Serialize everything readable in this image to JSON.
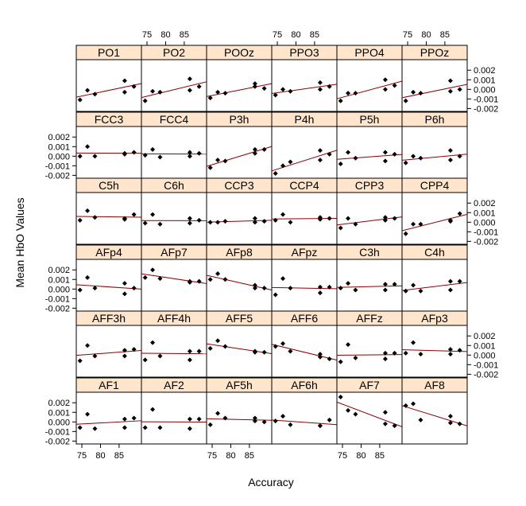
{
  "chart_data": {
    "type": "scatter",
    "xlabel": "Accuracy",
    "ylabel": "Mean HbO Values",
    "xlim": [
      73.5,
      91
    ],
    "ylim": [
      -0.0023,
      0.0031
    ],
    "x_ticks": [
      75,
      80,
      85
    ],
    "x_tick_labels": [
      "75",
      "80",
      "85"
    ],
    "y_ticks": [
      -0.002,
      -0.001,
      0.0,
      0.001,
      0.002
    ],
    "y_tick_labels": [
      "-0.002",
      "-0.001",
      "0.000",
      "0.001",
      "0.002"
    ],
    "x": [
      74.5,
      76.5,
      78.5,
      86.5,
      86.5,
      89.0
    ],
    "rows": [
      [
        "PO1",
        "PO2",
        "POOz",
        "PPO3",
        "PPO4",
        "PPOz"
      ],
      [
        "FCC3",
        "FCC4",
        "P3h",
        "P4h",
        "P5h",
        "P6h"
      ],
      [
        "C5h",
        "C6h",
        "CCP3",
        "CCP4",
        "CPP3",
        "CPP4"
      ],
      [
        "AFp4",
        "AFp7",
        "AFp8",
        "AFpz",
        "C3h",
        "C4h"
      ],
      [
        "AFF3h",
        "AFF4h",
        "AFF5",
        "AFF6",
        "AFFz",
        "AFp3"
      ],
      [
        "AF1",
        "AF2",
        "AF5h",
        "AF6h",
        "AF7",
        "AF8"
      ]
    ],
    "panels": {
      "PO1": [
        -0.0011,
        -0.0001,
        -0.0005,
        0.0009,
        -0.0003,
        0.0003
      ],
      "PO2": [
        -0.0012,
        -0.0002,
        -0.0003,
        0.0011,
        -0.0001,
        0.0003
      ],
      "POOz": [
        -0.0009,
        -0.0003,
        -0.0004,
        0.0006,
        0.0003,
        0.0001
      ],
      "PPO3": [
        -0.0006,
        0.0,
        -0.0002,
        0.0007,
        0.0,
        0.0003
      ],
      "PPO4": [
        -0.0012,
        -0.0004,
        -0.0004,
        0.001,
        0.0,
        0.0004
      ],
      "PPOz": [
        -0.0012,
        -0.0003,
        -0.0004,
        0.0009,
        -0.0002,
        0.0
      ],
      "FCC3": [
        0.0,
        0.001,
        0.0,
        0.0002,
        0.0003,
        0.0004
      ],
      "FCC4": [
        0.0001,
        0.0007,
        -0.0001,
        0.0004,
        0.0,
        0.0003
      ],
      "P3h": [
        -0.0012,
        -0.0004,
        -0.0005,
        0.0007,
        0.0003,
        0.0007
      ],
      "P4h": [
        -0.0018,
        -0.001,
        -0.0006,
        0.0006,
        -0.0004,
        0.0002
      ],
      "P5h": [
        -0.0008,
        0.0004,
        -0.0002,
        0.0004,
        -0.0005,
        0.0002
      ],
      "P6h": [
        -0.0007,
        0.0,
        -0.0002,
        0.0006,
        -0.0004,
        0.0
      ],
      "C5h": [
        0.0002,
        0.0012,
        0.0005,
        0.0004,
        0.0003,
        0.0008
      ],
      "C6h": [
        -0.0001,
        0.0008,
        -0.0002,
        0.0004,
        -0.0001,
        0.0002
      ],
      "CCP3": [
        0.0,
        0.0,
        0.0001,
        0.0004,
        0.0,
        0.0001
      ],
      "CCP4": [
        0.0002,
        0.0008,
        0.0,
        0.0005,
        0.0003,
        0.0004
      ],
      "CPP3": [
        -0.0006,
        0.0004,
        -0.0002,
        0.0005,
        0.0002,
        0.0004
      ],
      "CPP4": [
        -0.0012,
        -0.0002,
        -0.0002,
        0.0002,
        0.0001,
        0.0009
      ],
      "AFp4": [
        -0.0001,
        0.0012,
        0.0001,
        0.0006,
        -0.0005,
        0.0001
      ],
      "AFp7": [
        0.0012,
        0.002,
        0.0011,
        0.0008,
        0.0007,
        0.0008
      ],
      "AFp8": [
        0.001,
        0.0016,
        0.001,
        0.0004,
        0.0001,
        0.0001
      ],
      "AFpz": [
        -0.0006,
        0.0011,
        0.0001,
        0.0002,
        -0.0004,
        0.0002
      ],
      "C3h": [
        0.0001,
        0.0006,
        -0.0001,
        0.0005,
        -0.0001,
        0.0005
      ],
      "C4h": [
        -0.0002,
        0.0004,
        -0.0002,
        0.0008,
        -0.0001,
        0.0008
      ],
      "AFF3h": [
        -0.0006,
        0.001,
        -0.0001,
        0.0005,
        -0.0001,
        0.0006
      ],
      "AFF4h": [
        -0.0005,
        0.0013,
        -0.0001,
        0.0004,
        -0.0005,
        0.0004
      ],
      "AFF5": [
        0.0007,
        0.0015,
        0.0009,
        0.0003,
        0.0004,
        0.0003
      ],
      "AFF6": [
        0.0009,
        0.0012,
        0.0004,
        -0.0002,
        0.0001,
        -0.0004
      ],
      "AFFz": [
        -0.0007,
        0.0011,
        -0.0003,
        0.0002,
        -0.0004,
        0.0002
      ],
      "AFp3": [
        0.0002,
        0.0013,
        0.0001,
        0.0006,
        0.0001,
        0.0005
      ],
      "AF1": [
        -0.0006,
        0.0008,
        -0.0007,
        0.0003,
        -0.0006,
        0.0004
      ],
      "AF2": [
        -0.0006,
        0.0013,
        -0.0006,
        0.0003,
        -0.0007,
        0.0003
      ],
      "AF5h": [
        -0.0003,
        0.0009,
        0.0004,
        0.0004,
        0.0001,
        0.0
      ],
      "AF6h": [
        0.0001,
        0.0006,
        -0.0003,
        -0.0004,
        -0.0004,
        0.0002
      ],
      "AF7": [
        0.0026,
        0.0012,
        0.0008,
        0.001,
        -0.0002,
        -0.0004
      ],
      "AF8": [
        0.0017,
        0.0019,
        0.0002,
        0.0006,
        -0.0001,
        -0.0002
      ]
    }
  }
}
